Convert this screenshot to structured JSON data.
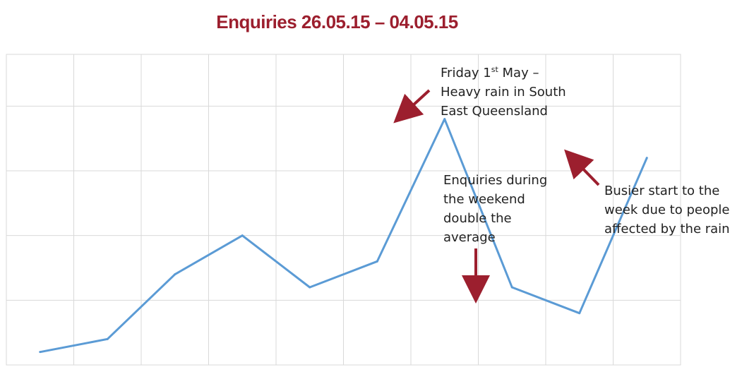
{
  "chart_data": {
    "type": "line",
    "title": "Enquiries 26.05.15 – 04.05.15",
    "xlabel": "",
    "ylabel": "",
    "x_count": 11,
    "values": [
      1,
      2,
      7,
      10,
      6,
      8,
      19,
      6,
      4,
      16
    ],
    "ylim": [
      0,
      24
    ],
    "y_grid_step": 5,
    "grid": true,
    "line_color": "#5b9bd5",
    "annotations": [
      {
        "lines": [
          "Friday 1st May –",
          "Heavy rain in South",
          "East Queensland"
        ],
        "point_index": 6
      },
      {
        "lines": [
          "Enquiries during",
          "the weekend",
          "double the",
          "average"
        ],
        "point_index": 7
      },
      {
        "lines": [
          "Busier start to the",
          "week due to people",
          "affected by the rain"
        ],
        "point_index": 9
      }
    ]
  },
  "colors": {
    "title": "#9c1f2e",
    "arrow": "#9c1f2e",
    "grid": "#d9d9d9",
    "line": "#5b9bd5"
  }
}
